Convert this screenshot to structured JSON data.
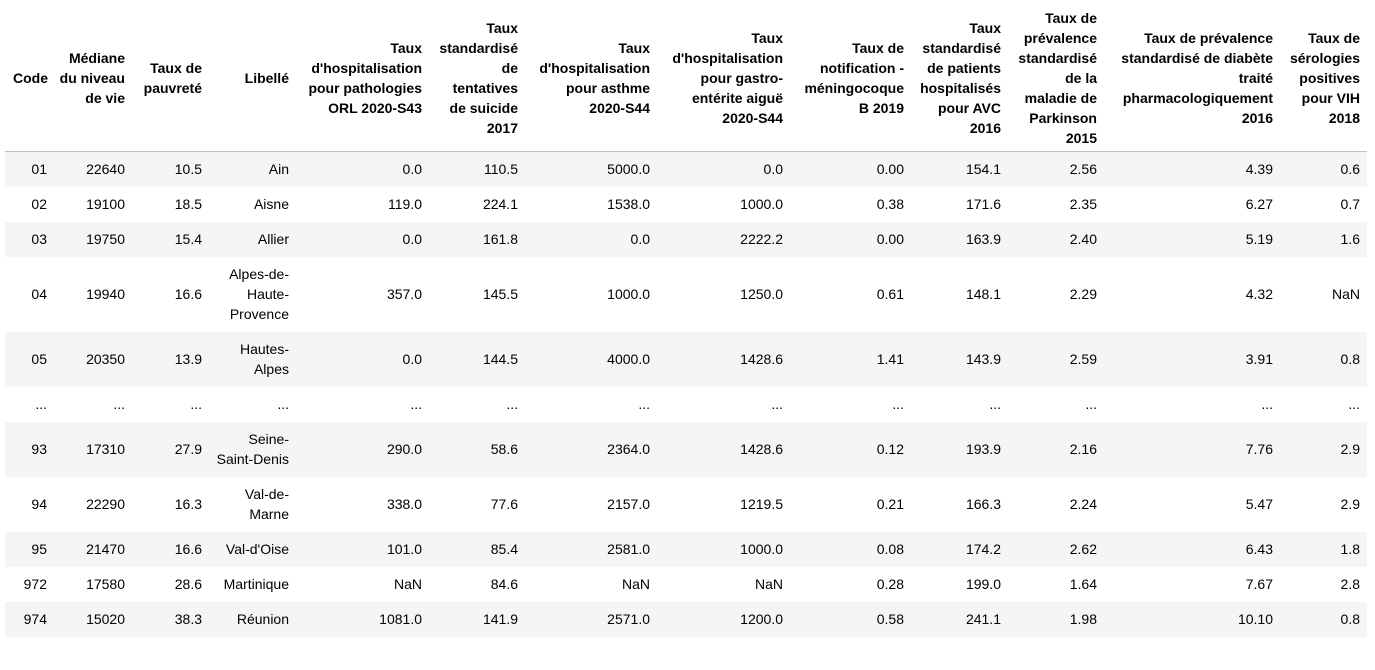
{
  "table": {
    "columns": [
      "Code",
      "Médiane du niveau de vie",
      "Taux de pauvreté",
      "Libellé",
      "Taux d'hospitalisation pour pathologies ORL 2020-S43",
      "Taux standardisé de tentatives de suicide 2017",
      "Taux d'hospitalisation pour asthme 2020-S44",
      "Taux d'hospitalisation pour gastro-entérite aiguë 2020-S44",
      "Taux de notification - méningocoque B 2019",
      "Taux standardisé de patients hospitalisés pour AVC 2016",
      "Taux de prévalence standardisé de la maladie de Parkinson 2015",
      "Taux de prévalence standardisé de diabète traité pharmacologiquement 2016",
      "Taux de sérologies positives pour VIH 2018"
    ],
    "rows": [
      [
        "01",
        "22640",
        "10.5",
        "Ain",
        "0.0",
        "110.5",
        "5000.0",
        "0.0",
        "0.00",
        "154.1",
        "2.56",
        "4.39",
        "0.6"
      ],
      [
        "02",
        "19100",
        "18.5",
        "Aisne",
        "119.0",
        "224.1",
        "1538.0",
        "1000.0",
        "0.38",
        "171.6",
        "2.35",
        "6.27",
        "0.7"
      ],
      [
        "03",
        "19750",
        "15.4",
        "Allier",
        "0.0",
        "161.8",
        "0.0",
        "2222.2",
        "0.00",
        "163.9",
        "2.40",
        "5.19",
        "1.6"
      ],
      [
        "04",
        "19940",
        "16.6",
        "Alpes-de-Haute-Provence",
        "357.0",
        "145.5",
        "1000.0",
        "1250.0",
        "0.61",
        "148.1",
        "2.29",
        "4.32",
        "NaN"
      ],
      [
        "05",
        "20350",
        "13.9",
        "Hautes-Alpes",
        "0.0",
        "144.5",
        "4000.0",
        "1428.6",
        "1.41",
        "143.9",
        "2.59",
        "3.91",
        "0.8"
      ],
      [
        "...",
        "...",
        "...",
        "...",
        "...",
        "...",
        "...",
        "...",
        "...",
        "...",
        "...",
        "...",
        "..."
      ],
      [
        "93",
        "17310",
        "27.9",
        "Seine-Saint-Denis",
        "290.0",
        "58.6",
        "2364.0",
        "1428.6",
        "0.12",
        "193.9",
        "2.16",
        "7.76",
        "2.9"
      ],
      [
        "94",
        "22290",
        "16.3",
        "Val-de-Marne",
        "338.0",
        "77.6",
        "2157.0",
        "1219.5",
        "0.21",
        "166.3",
        "2.24",
        "5.47",
        "2.9"
      ],
      [
        "95",
        "21470",
        "16.6",
        "Val-d'Oise",
        "101.0",
        "85.4",
        "2581.0",
        "1000.0",
        "0.08",
        "174.2",
        "2.62",
        "6.43",
        "1.8"
      ],
      [
        "972",
        "17580",
        "28.6",
        "Martinique",
        "NaN",
        "84.6",
        "NaN",
        "NaN",
        "0.28",
        "199.0",
        "1.64",
        "7.67",
        "2.8"
      ],
      [
        "974",
        "15020",
        "38.3",
        "Réunion",
        "1081.0",
        "141.9",
        "2571.0",
        "1200.0",
        "0.58",
        "241.1",
        "1.98",
        "10.10",
        "0.8"
      ]
    ]
  }
}
